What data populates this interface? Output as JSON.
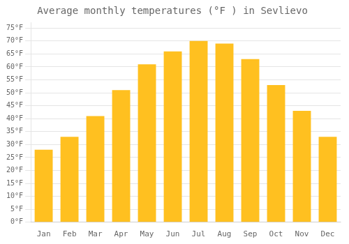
{
  "chart_data": {
    "type": "bar",
    "title": "Average monthly temperatures (°F ) in Sevlievo",
    "categories": [
      "Jan",
      "Feb",
      "Mar",
      "Apr",
      "May",
      "Jun",
      "Jul",
      "Aug",
      "Sep",
      "Oct",
      "Nov",
      "Dec"
    ],
    "values": [
      28,
      33,
      41,
      51,
      61,
      66,
      70,
      69,
      63,
      53,
      43,
      33
    ],
    "color": "#FFC020",
    "ylim": [
      0,
      77
    ],
    "yticks": [
      {
        "value": 0,
        "label": "0°F"
      },
      {
        "value": 5,
        "label": "5°F"
      },
      {
        "value": 10,
        "label": "10°F"
      },
      {
        "value": 15,
        "label": "15°F"
      },
      {
        "value": 20,
        "label": "20°F"
      },
      {
        "value": 25,
        "label": "25°F"
      },
      {
        "value": 30,
        "label": "30°F"
      },
      {
        "value": 35,
        "label": "35°F"
      },
      {
        "value": 40,
        "label": "40°F"
      },
      {
        "value": 45,
        "label": "45°F"
      },
      {
        "value": 50,
        "label": "50°F"
      },
      {
        "value": 55,
        "label": "55°F"
      },
      {
        "value": 60,
        "label": "60°F"
      },
      {
        "value": 65,
        "label": "65°F"
      },
      {
        "value": 70,
        "label": "70°F"
      },
      {
        "value": 75,
        "label": "75°F"
      }
    ],
    "grid": true
  }
}
